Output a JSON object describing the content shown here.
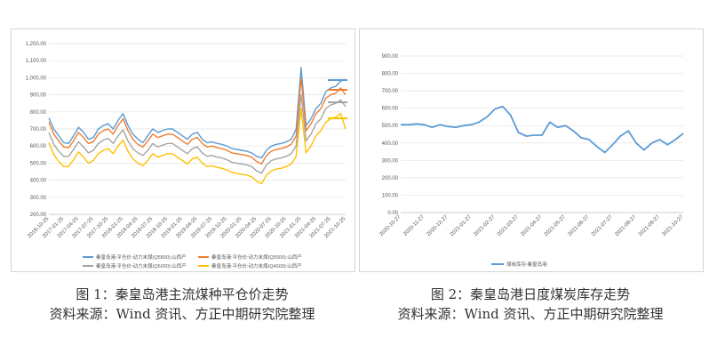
{
  "chart_data": [
    {
      "type": "line",
      "title": "",
      "xlabel": "",
      "ylabel": "",
      "ylim": [
        200,
        1200
      ],
      "yticks": [
        "200.00",
        "300.00",
        "400.00",
        "500.00",
        "600.00",
        "700.00",
        "800.00",
        "900.00",
        "1,000.00",
        "1,100.00",
        "1,200.00"
      ],
      "grid": true,
      "legend_placement": "bottom",
      "x_ticks": [
        "2016-10-25",
        "2017-01-25",
        "2017-04-25",
        "2017-07-25",
        "2017-10-25",
        "2018-01-25",
        "2018-04-25",
        "2018-07-25",
        "2018-10-25",
        "2019-01-25",
        "2019-04-25",
        "2019-07-25",
        "2019-10-25",
        "2020-01-25",
        "2020-04-25",
        "2020-07-25",
        "2020-10-25",
        "2021-01-25",
        "2021-04-25",
        "2021-07-25",
        "2021-10-25"
      ],
      "x": [
        "2016-10",
        "2016-11",
        "2016-12",
        "2017-01",
        "2017-02",
        "2017-03",
        "2017-04",
        "2017-05",
        "2017-06",
        "2017-07",
        "2017-08",
        "2017-09",
        "2017-10",
        "2017-11",
        "2017-12",
        "2018-01",
        "2018-02",
        "2018-03",
        "2018-04",
        "2018-05",
        "2018-06",
        "2018-07",
        "2018-08",
        "2018-09",
        "2018-10",
        "2018-11",
        "2018-12",
        "2019-01",
        "2019-02",
        "2019-03",
        "2019-04",
        "2019-05",
        "2019-06",
        "2019-07",
        "2019-08",
        "2019-09",
        "2019-10",
        "2019-11",
        "2019-12",
        "2020-01",
        "2020-02",
        "2020-03",
        "2020-04",
        "2020-05",
        "2020-06",
        "2020-07",
        "2020-08",
        "2020-09",
        "2020-10",
        "2020-11",
        "2020-12",
        "2021-01",
        "2021-02",
        "2021-03",
        "2021-04",
        "2021-05",
        "2021-06",
        "2021-07",
        "2021-08",
        "2021-09",
        "2021-10"
      ],
      "series": [
        {
          "name": "秦皇岛港:平仓价:动力末煤(Q5800):山西产",
          "color": "#5b9bd5",
          "values": [
            765,
            700,
            660,
            620,
            615,
            660,
            710,
            680,
            640,
            650,
            700,
            720,
            730,
            700,
            750,
            790,
            720,
            670,
            640,
            620,
            660,
            700,
            680,
            690,
            700,
            700,
            680,
            660,
            640,
            670,
            680,
            640,
            620,
            625,
            615,
            610,
            600,
            585,
            580,
            575,
            570,
            560,
            540,
            530,
            575,
            600,
            610,
            615,
            625,
            640,
            700,
            1060,
            720,
            760,
            820,
            850,
            920,
            940,
            950,
            980,
            990
          ]
        },
        {
          "name": "秦皇岛港:平仓价:动力末煤(Q5500):山西产",
          "color": "#ed7d31",
          "values": [
            740,
            670,
            630,
            595,
            590,
            630,
            680,
            650,
            615,
            625,
            670,
            690,
            700,
            670,
            720,
            760,
            690,
            640,
            610,
            595,
            630,
            670,
            650,
            660,
            670,
            670,
            650,
            630,
            610,
            640,
            650,
            615,
            595,
            600,
            590,
            585,
            575,
            560,
            555,
            550,
            545,
            535,
            510,
            495,
            545,
            570,
            580,
            585,
            595,
            610,
            660,
            1000,
            690,
            730,
            790,
            820,
            880,
            900,
            910,
            940,
            900
          ]
        },
        {
          "name": "秦皇岛港:平仓价:动力末煤(Q5000):山西产",
          "color": "#a5a5a5",
          "values": [
            680,
            610,
            570,
            540,
            540,
            580,
            625,
            595,
            560,
            575,
            615,
            635,
            645,
            615,
            660,
            695,
            630,
            585,
            560,
            545,
            575,
            615,
            595,
            605,
            615,
            615,
            595,
            575,
            555,
            585,
            595,
            560,
            540,
            545,
            535,
            530,
            520,
            505,
            500,
            495,
            490,
            480,
            455,
            440,
            490,
            515,
            525,
            530,
            540,
            555,
            600,
            900,
            630,
            670,
            730,
            760,
            820,
            840,
            850,
            870,
            830
          ]
        },
        {
          "name": "秦皇岛港:平仓价:动力末煤(Q4500):山西产",
          "color": "#ffc000",
          "values": [
            620,
            550,
            510,
            480,
            480,
            520,
            565,
            535,
            500,
            515,
            555,
            575,
            585,
            555,
            600,
            635,
            570,
            525,
            500,
            485,
            515,
            555,
            535,
            545,
            555,
            555,
            535,
            515,
            495,
            525,
            535,
            500,
            480,
            485,
            475,
            470,
            460,
            445,
            440,
            435,
            430,
            420,
            395,
            380,
            430,
            455,
            465,
            470,
            480,
            495,
            540,
            820,
            560,
            600,
            660,
            690,
            740,
            760,
            770,
            790,
            700
          ]
        }
      ]
    },
    {
      "type": "line",
      "title": "",
      "xlabel": "",
      "ylabel": "",
      "ylim": [
        0,
        900
      ],
      "yticks": [
        "0.00",
        "100.00",
        "200.00",
        "300.00",
        "400.00",
        "500.00",
        "600.00",
        "700.00",
        "800.00",
        "900.00"
      ],
      "grid": true,
      "legend_placement": "bottom",
      "x_ticks": [
        "2020-10-27",
        "2020-11-27",
        "2020-12-27",
        "2021-01-27",
        "2021-02-27",
        "2021-03-27",
        "2021-04-27",
        "2021-05-27",
        "2021-06-27",
        "2021-07-27",
        "2021-08-27",
        "2021-09-27",
        "2021-10-27"
      ],
      "x": [
        "2020-10-27",
        "2020-11-06",
        "2020-11-16",
        "2020-11-27",
        "2020-12-07",
        "2020-12-17",
        "2020-12-27",
        "2021-01-06",
        "2021-01-16",
        "2021-01-27",
        "2021-02-06",
        "2021-02-16",
        "2021-02-27",
        "2021-03-06",
        "2021-03-16",
        "2021-03-27",
        "2021-04-06",
        "2021-04-16",
        "2021-04-27",
        "2021-05-06",
        "2021-05-16",
        "2021-05-27",
        "2021-06-06",
        "2021-06-16",
        "2021-06-27",
        "2021-07-06",
        "2021-07-16",
        "2021-07-27",
        "2021-08-06",
        "2021-08-16",
        "2021-08-27",
        "2021-09-06",
        "2021-09-16",
        "2021-09-27",
        "2021-10-06",
        "2021-10-16",
        "2021-10-27"
      ],
      "series": [
        {
          "name": "煤炭库存:秦皇岛港",
          "color": "#5b9bd5",
          "values": [
            505,
            505,
            510,
            505,
            490,
            505,
            495,
            490,
            500,
            505,
            520,
            550,
            595,
            610,
            560,
            460,
            440,
            445,
            445,
            520,
            490,
            500,
            470,
            430,
            420,
            380,
            345,
            390,
            440,
            470,
            400,
            360,
            400,
            420,
            390,
            420,
            455
          ]
        }
      ]
    }
  ],
  "captions": {
    "fig1_title": "图 1：秦皇岛港主流煤种平仓价走势",
    "fig1_source": "资料来源：Wind 资讯、方正中期研究院整理",
    "fig2_title": "图 2：秦皇岛港日度煤炭库存走势",
    "fig2_source": "资料来源：Wind 资讯、方正中期研究院整理"
  }
}
